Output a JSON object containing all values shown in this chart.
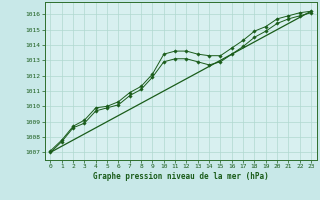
{
  "title": "Graphe pression niveau de la mer (hPa)",
  "bg_color": "#c8e8e8",
  "plot_bg_color": "#d8f0f0",
  "grid_color": "#b0d8d0",
  "line_color": "#1a5c1a",
  "marker_color": "#1a5c1a",
  "axis_color": "#2d6e2d",
  "text_color": "#1a5c1a",
  "xlim": [
    -0.5,
    23.5
  ],
  "ylim": [
    1006.5,
    1016.8
  ],
  "yticks": [
    1007,
    1008,
    1009,
    1010,
    1011,
    1012,
    1013,
    1014,
    1015,
    1016
  ],
  "xticks": [
    0,
    1,
    2,
    3,
    4,
    5,
    6,
    7,
    8,
    9,
    10,
    11,
    12,
    13,
    14,
    15,
    16,
    17,
    18,
    19,
    20,
    21,
    22,
    23
  ],
  "line1_x": [
    0,
    1,
    2,
    3,
    4,
    5,
    6,
    7,
    8,
    9,
    10,
    11,
    12,
    13,
    14,
    15,
    16,
    17,
    18,
    19,
    20,
    21,
    22,
    23
  ],
  "line1_y": [
    1007.1,
    1007.8,
    1008.7,
    1009.1,
    1009.9,
    1010.0,
    1010.3,
    1010.9,
    1011.3,
    1012.1,
    1013.4,
    1013.6,
    1013.6,
    1013.4,
    1013.3,
    1013.3,
    1013.8,
    1014.3,
    1014.9,
    1015.2,
    1015.7,
    1015.9,
    1016.1,
    1016.2
  ],
  "line2_x": [
    0,
    1,
    2,
    3,
    4,
    5,
    6,
    7,
    8,
    9,
    10,
    11,
    12,
    13,
    14,
    15,
    16,
    17,
    18,
    19,
    20,
    21,
    22,
    23
  ],
  "line2_y": [
    1007.0,
    1007.7,
    1008.6,
    1008.9,
    1009.7,
    1009.9,
    1010.1,
    1010.7,
    1011.1,
    1011.9,
    1012.9,
    1013.1,
    1013.1,
    1012.9,
    1012.7,
    1012.9,
    1013.4,
    1013.9,
    1014.5,
    1014.9,
    1015.4,
    1015.7,
    1015.9,
    1016.1
  ],
  "trend_x": [
    0,
    23
  ],
  "trend_y": [
    1007.0,
    1016.2
  ]
}
